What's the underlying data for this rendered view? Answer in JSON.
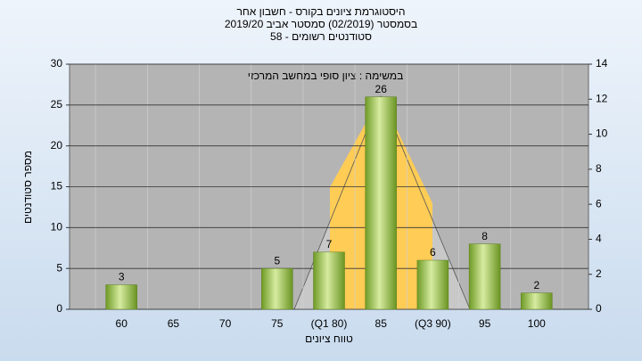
{
  "chart_data": {
    "type": "bar",
    "title": "היסטוגרמת ציונים בקורס - חשבון אחר",
    "subtitle": "בסמסטר (02/2019) סמסטר אביב 2019/20",
    "subtitle2": "סטודנטים רשומים - 58",
    "annotation": "במשימה : ציון סופי במחשב המרכזי",
    "y_label": "מספר סטודנטים",
    "x_label": "טווח ציונים",
    "categories": [
      "60",
      "65",
      "70",
      "75",
      "(Q1 80)",
      "85",
      "(Q3 90)",
      "95",
      "100"
    ],
    "values": [
      3,
      0,
      0,
      5,
      7,
      26,
      6,
      8,
      2
    ],
    "value_labels": [
      "3",
      null,
      null,
      "5",
      "7",
      "26",
      "6",
      "8",
      "2"
    ],
    "color": "#8cb83c",
    "ylim": [
      0,
      30
    ],
    "yticks": [
      0,
      5,
      10,
      15,
      20,
      25,
      30
    ],
    "y2lim": [
      0,
      14
    ],
    "y2ticks": [
      0,
      2,
      4,
      6,
      8,
      10,
      12,
      14
    ],
    "grid": true
  }
}
